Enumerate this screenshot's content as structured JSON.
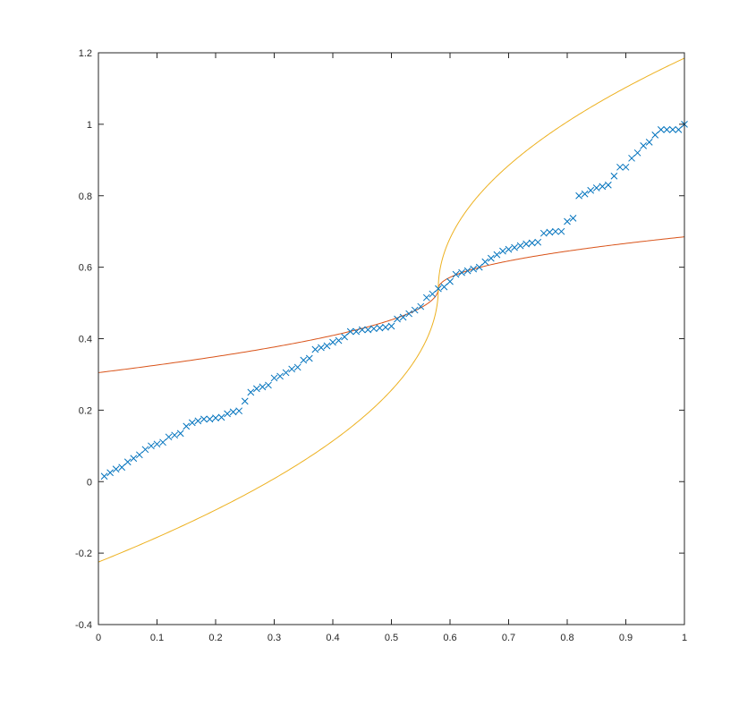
{
  "chart_data": {
    "type": "line",
    "title": "",
    "xlabel": "",
    "ylabel": "",
    "xlim": [
      0,
      1
    ],
    "ylim": [
      -0.4,
      1.2
    ],
    "x_ticks": [
      "0",
      "0.1",
      "0.2",
      "0.3",
      "0.4",
      "0.5",
      "0.6",
      "0.7",
      "0.8",
      "0.9",
      "1"
    ],
    "y_ticks": [
      "-0.4",
      "-0.2",
      "0",
      "0.2",
      "0.4",
      "0.6",
      "0.8",
      "1",
      "1.2"
    ],
    "grid": false,
    "box": true,
    "series": [
      {
        "marker": "x",
        "line": "none",
        "color": "#0072BD",
        "points": [
          [
            0.01,
            0.015
          ],
          [
            0.02,
            0.025
          ],
          [
            0.03,
            0.035
          ],
          [
            0.04,
            0.04
          ],
          [
            0.05,
            0.055
          ],
          [
            0.06,
            0.065
          ],
          [
            0.07,
            0.075
          ],
          [
            0.08,
            0.09
          ],
          [
            0.09,
            0.1
          ],
          [
            0.1,
            0.105
          ],
          [
            0.11,
            0.11
          ],
          [
            0.12,
            0.125
          ],
          [
            0.13,
            0.13
          ],
          [
            0.14,
            0.135
          ],
          [
            0.15,
            0.155
          ],
          [
            0.16,
            0.165
          ],
          [
            0.17,
            0.17
          ],
          [
            0.18,
            0.175
          ],
          [
            0.19,
            0.175
          ],
          [
            0.2,
            0.178
          ],
          [
            0.21,
            0.18
          ],
          [
            0.22,
            0.19
          ],
          [
            0.23,
            0.195
          ],
          [
            0.24,
            0.198
          ],
          [
            0.25,
            0.225
          ],
          [
            0.26,
            0.25
          ],
          [
            0.27,
            0.26
          ],
          [
            0.28,
            0.265
          ],
          [
            0.29,
            0.27
          ],
          [
            0.3,
            0.29
          ],
          [
            0.31,
            0.295
          ],
          [
            0.32,
            0.305
          ],
          [
            0.33,
            0.315
          ],
          [
            0.34,
            0.32
          ],
          [
            0.35,
            0.34
          ],
          [
            0.36,
            0.345
          ],
          [
            0.37,
            0.37
          ],
          [
            0.38,
            0.375
          ],
          [
            0.39,
            0.38
          ],
          [
            0.4,
            0.39
          ],
          [
            0.41,
            0.395
          ],
          [
            0.42,
            0.405
          ],
          [
            0.43,
            0.42
          ],
          [
            0.44,
            0.42
          ],
          [
            0.45,
            0.425
          ],
          [
            0.46,
            0.425
          ],
          [
            0.47,
            0.428
          ],
          [
            0.48,
            0.43
          ],
          [
            0.49,
            0.432
          ],
          [
            0.5,
            0.435
          ],
          [
            0.51,
            0.455
          ],
          [
            0.52,
            0.46
          ],
          [
            0.53,
            0.47
          ],
          [
            0.54,
            0.48
          ],
          [
            0.55,
            0.49
          ],
          [
            0.56,
            0.515
          ],
          [
            0.57,
            0.525
          ],
          [
            0.58,
            0.54
          ],
          [
            0.59,
            0.545
          ],
          [
            0.6,
            0.56
          ],
          [
            0.61,
            0.58
          ],
          [
            0.62,
            0.585
          ],
          [
            0.63,
            0.59
          ],
          [
            0.64,
            0.595
          ],
          [
            0.65,
            0.6
          ],
          [
            0.66,
            0.615
          ],
          [
            0.67,
            0.625
          ],
          [
            0.68,
            0.635
          ],
          [
            0.69,
            0.645
          ],
          [
            0.7,
            0.65
          ],
          [
            0.71,
            0.655
          ],
          [
            0.72,
            0.66
          ],
          [
            0.73,
            0.665
          ],
          [
            0.74,
            0.668
          ],
          [
            0.75,
            0.67
          ],
          [
            0.76,
            0.695
          ],
          [
            0.77,
            0.698
          ],
          [
            0.78,
            0.7
          ],
          [
            0.79,
            0.7
          ],
          [
            0.8,
            0.728
          ],
          [
            0.81,
            0.737
          ],
          [
            0.82,
            0.8
          ],
          [
            0.83,
            0.805
          ],
          [
            0.84,
            0.815
          ],
          [
            0.85,
            0.822
          ],
          [
            0.86,
            0.826
          ],
          [
            0.87,
            0.83
          ],
          [
            0.88,
            0.855
          ],
          [
            0.89,
            0.88
          ],
          [
            0.9,
            0.88
          ],
          [
            0.91,
            0.905
          ],
          [
            0.92,
            0.92
          ],
          [
            0.93,
            0.94
          ],
          [
            0.94,
            0.95
          ],
          [
            0.95,
            0.97
          ],
          [
            0.96,
            0.985
          ],
          [
            0.97,
            0.985
          ],
          [
            0.98,
            0.985
          ],
          [
            0.99,
            0.985
          ],
          [
            1.0,
            1.0
          ]
        ]
      },
      {
        "marker": "none",
        "line": "solid",
        "color": "#D95319",
        "curve": "parabola_x_of_y",
        "vertex": [
          0.58,
          0.54
        ],
        "points": [
          [
            0.0,
            0.305
          ],
          [
            0.1,
            0.36
          ],
          [
            0.2,
            0.415
          ],
          [
            0.3,
            0.455
          ],
          [
            0.4,
            0.495
          ],
          [
            0.5,
            0.525
          ],
          [
            0.58,
            0.54
          ],
          [
            0.7,
            0.565
          ],
          [
            0.8,
            0.605
          ],
          [
            0.9,
            0.645
          ],
          [
            1.0,
            0.685
          ]
        ]
      },
      {
        "marker": "none",
        "line": "solid",
        "color": "#EDB120",
        "curve": "parabola_x_of_y",
        "vertex": [
          0.58,
          0.54
        ],
        "points": [
          [
            0.0,
            -0.225
          ],
          [
            0.1,
            -0.15
          ],
          [
            0.2,
            -0.07
          ],
          [
            0.3,
            0.02
          ],
          [
            0.4,
            0.12
          ],
          [
            0.5,
            0.26
          ],
          [
            0.58,
            0.54
          ],
          [
            0.7,
            0.85
          ],
          [
            0.8,
            0.99
          ],
          [
            0.9,
            1.09
          ],
          [
            1.0,
            1.185
          ]
        ]
      }
    ]
  }
}
